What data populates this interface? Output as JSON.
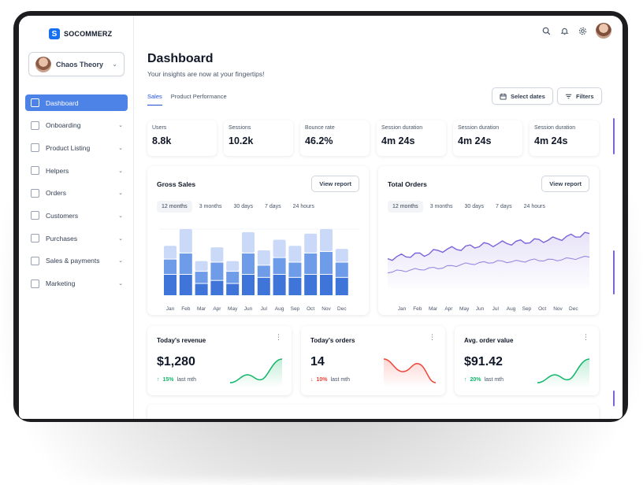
{
  "brand": {
    "name": "SOCOMMERZ",
    "accent": "#1570ef"
  },
  "workspace": {
    "name": "Chaos Theory"
  },
  "sidebar": {
    "items": [
      {
        "label": "Dashboard",
        "icon": "bar-chart-icon",
        "active": true
      },
      {
        "label": "Onboarding",
        "icon": "layers-icon"
      },
      {
        "label": "Product Listing",
        "icon": "layers-icon"
      },
      {
        "label": "Helpers",
        "icon": "layers-icon"
      },
      {
        "label": "Orders",
        "icon": "home-icon"
      },
      {
        "label": "Customers",
        "icon": "layers-icon"
      },
      {
        "label": "Purchases",
        "icon": "pie-chart-icon"
      },
      {
        "label": "Sales & payments",
        "icon": "users-icon"
      },
      {
        "label": "Marketing",
        "icon": "layers-icon"
      }
    ]
  },
  "header": {
    "title": "Dashboard",
    "subtitle": "Your insights are now at your fingertips!",
    "tabs": [
      "Sales",
      "Product Performance"
    ],
    "select_dates": "Select dates",
    "filters": "Filters"
  },
  "stats": [
    {
      "label": "Users",
      "value": "8.8k"
    },
    {
      "label": "Sessions",
      "value": "10.2k"
    },
    {
      "label": "Bounce rate",
      "value": "46.2%"
    },
    {
      "label": "Session duration",
      "value": "4m 24s"
    },
    {
      "label": "Session duration",
      "value": "4m 24s"
    },
    {
      "label": "Session duration",
      "value": "4m 24s"
    }
  ],
  "gross_sales": {
    "title": "Gross Sales",
    "button": "View report",
    "ranges": [
      "12 months",
      "3 months",
      "30 days",
      "7 days",
      "24 hours"
    ]
  },
  "total_orders": {
    "title": "Total Orders",
    "button": "View report",
    "ranges": [
      "12 months",
      "3 months",
      "30 days",
      "7 days",
      "24 hours"
    ]
  },
  "mini_cards": [
    {
      "title": "Today's revenue",
      "value": "$1,280",
      "delta": "15%",
      "delta_dir": "up",
      "period": "last mth"
    },
    {
      "title": "Today's orders",
      "value": "14",
      "delta": "10%",
      "delta_dir": "down",
      "period": "last mth"
    },
    {
      "title": "Avg. order value",
      "value": "$91.42",
      "delta": "20%",
      "delta_dir": "up",
      "period": "last mth"
    }
  ],
  "chart_data": [
    {
      "type": "bar",
      "categories": [
        "Jan",
        "Feb",
        "Mar",
        "Apr",
        "May",
        "Jun",
        "Jul",
        "Aug",
        "Sep",
        "Oct",
        "Nov",
        "Dec"
      ],
      "series": [
        {
          "values": [
            14,
            14,
            8,
            10,
            8,
            14,
            12,
            14,
            12,
            14,
            14,
            12
          ]
        },
        {
          "values": [
            10,
            14,
            8,
            12,
            8,
            14,
            8,
            11,
            10,
            14,
            15,
            10
          ]
        },
        {
          "values": [
            9,
            16,
            7,
            10,
            7,
            14,
            10,
            12,
            11,
            13,
            15,
            9
          ]
        }
      ],
      "colors": [
        "#3f74d8",
        "#6f9ce8",
        "#c9d9f7"
      ]
    },
    {
      "type": "line",
      "categories": [
        "Jan",
        "Feb",
        "Mar",
        "Apr",
        "May",
        "Jun",
        "Jul",
        "Aug",
        "Sep",
        "Oct",
        "Nov",
        "Dec"
      ],
      "series": [
        {
          "values": [
            40,
            44,
            46,
            52,
            54,
            58,
            60,
            62,
            64,
            66,
            70,
            74
          ]
        },
        {
          "values": [
            22,
            24,
            26,
            28,
            32,
            34,
            36,
            36,
            38,
            38,
            40,
            42
          ]
        }
      ],
      "colors": [
        "#7c63d9",
        "#9a88e2"
      ]
    }
  ]
}
